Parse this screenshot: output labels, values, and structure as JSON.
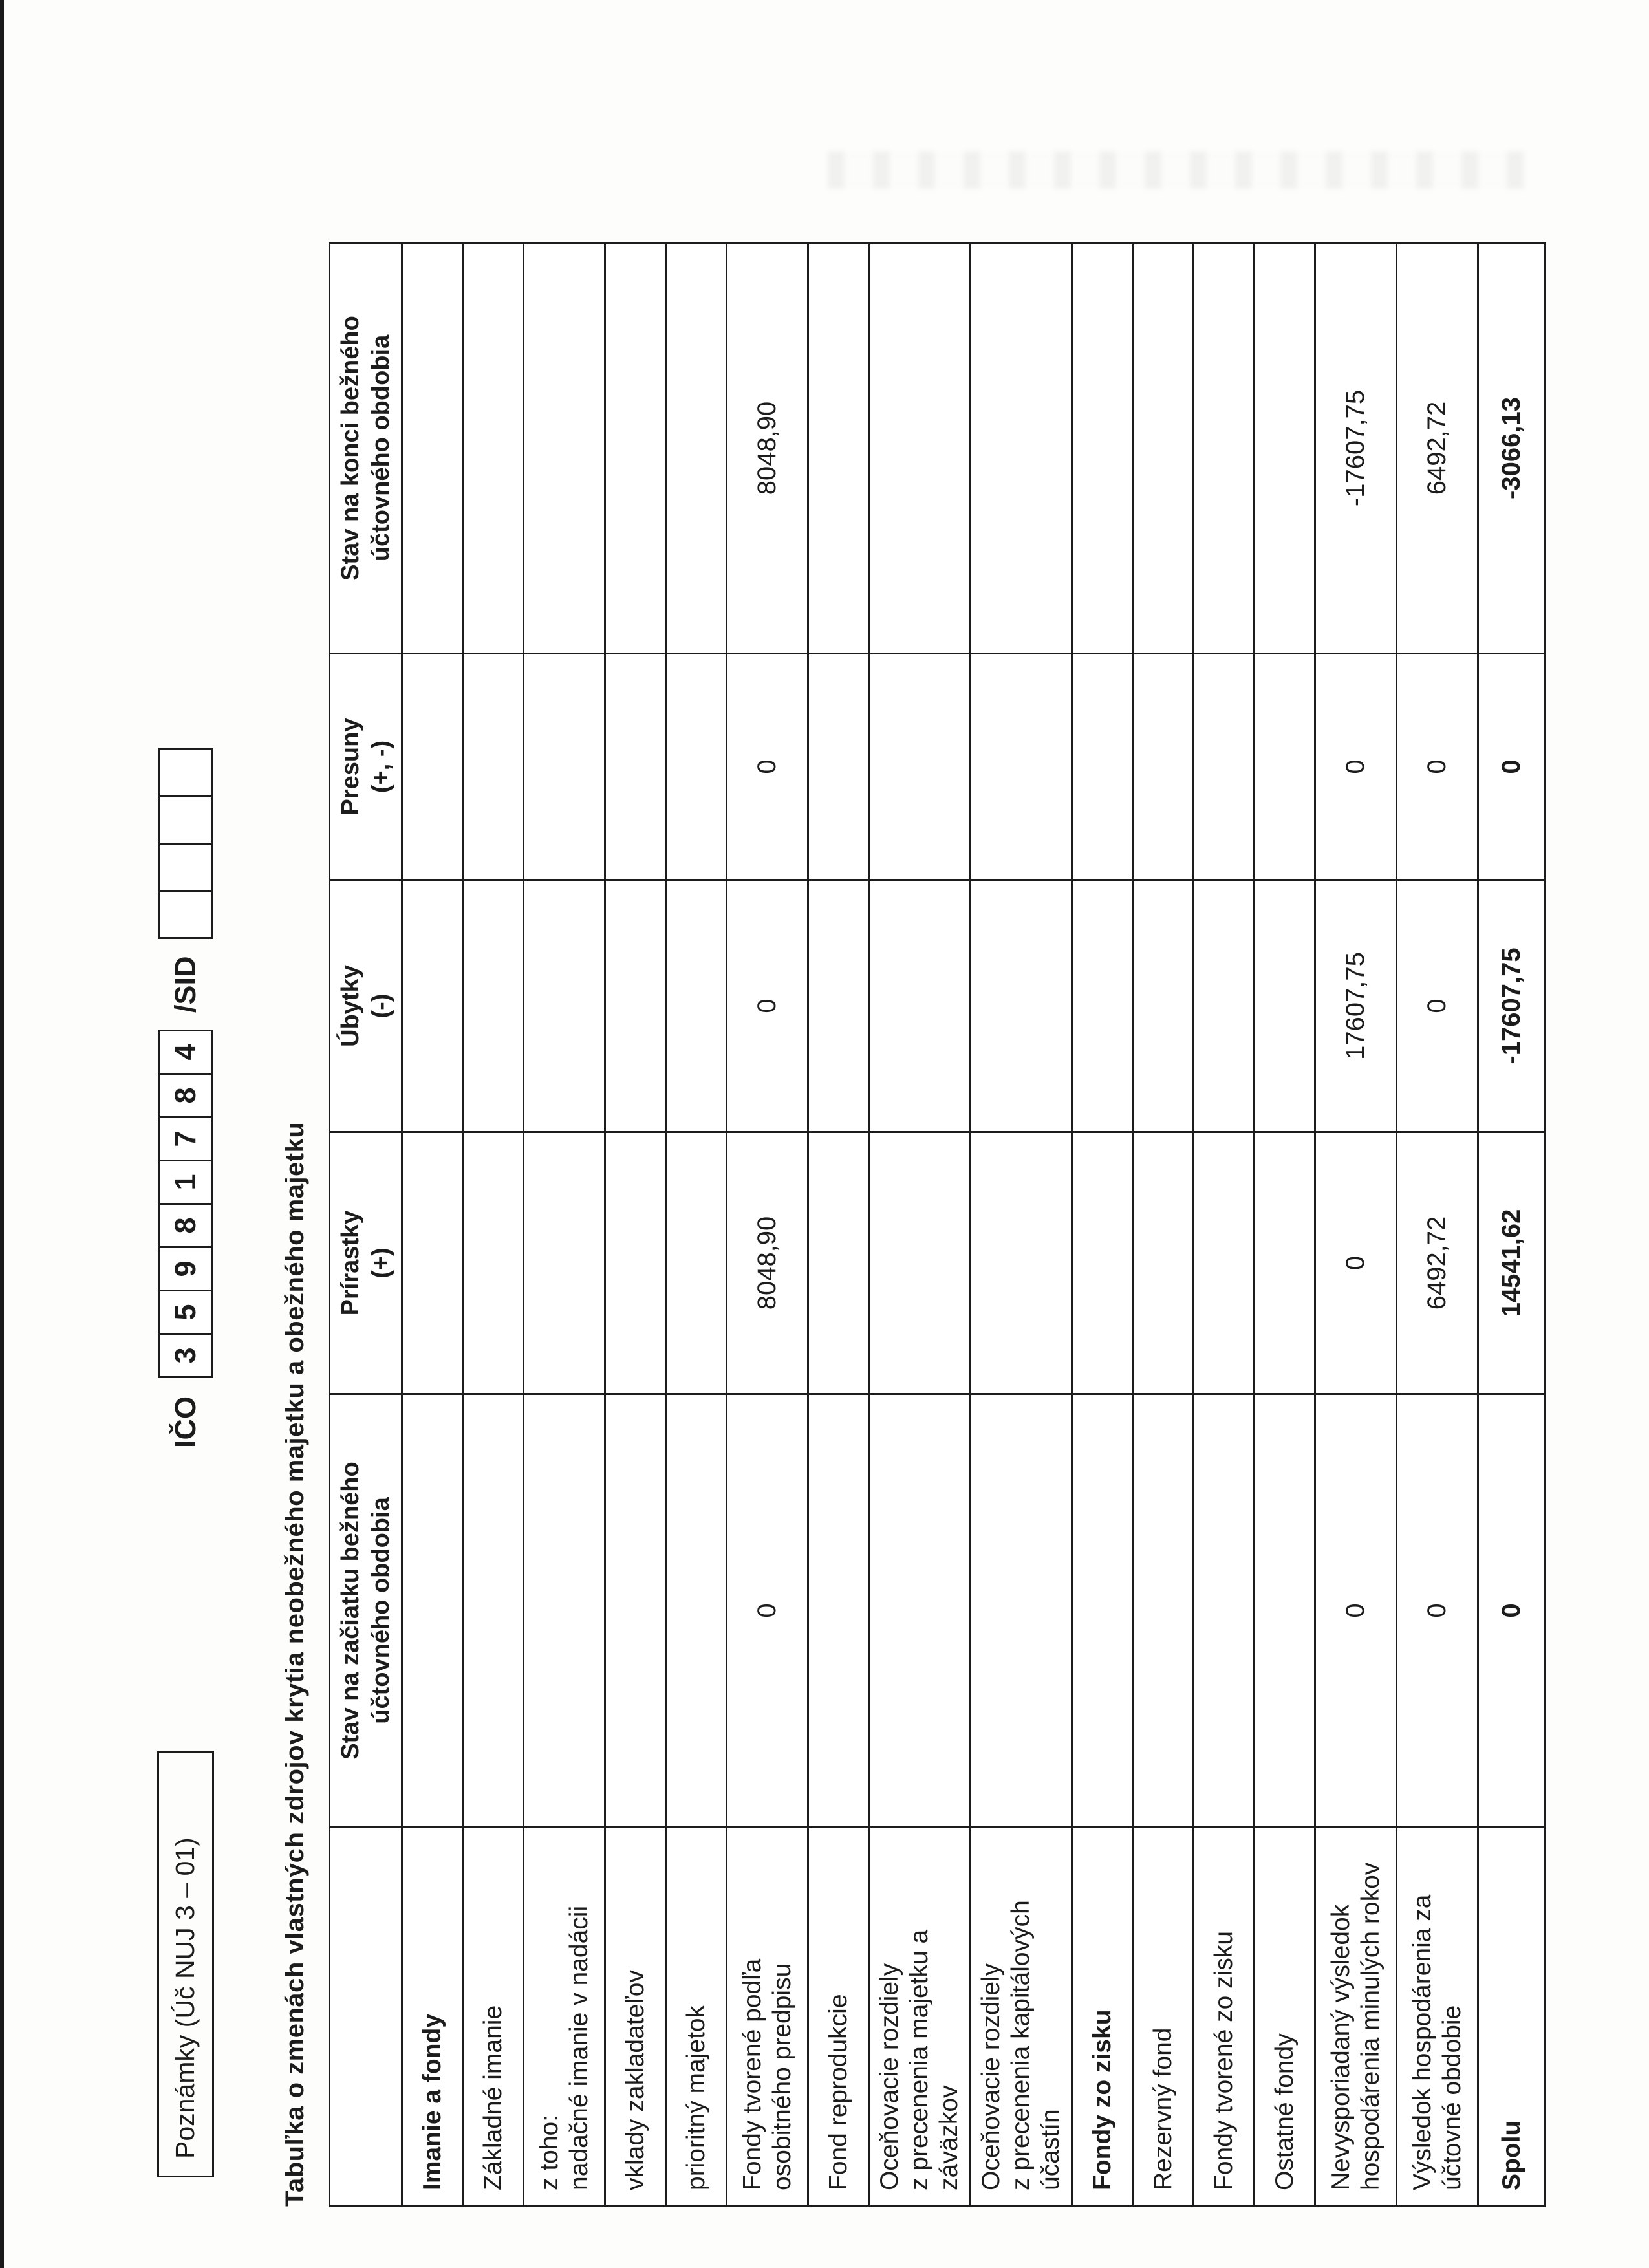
{
  "page": {
    "poznamky_label": "Poznámky (Úč NUJ 3 – 01)",
    "ico": {
      "label": "IČO",
      "digits": [
        "3",
        "5",
        "9",
        "8",
        "1",
        "7",
        "8",
        "4"
      ],
      "sid_label": "/SID",
      "sid_empty_count": 4
    },
    "title": "Tabuľka o zmenách vlastných zdrojov krytia neobežného majetku a obežného majetku"
  },
  "table": {
    "header": [
      {
        "lines": []
      },
      {
        "lines": [
          "Stav na začiatku bežného",
          "účtovného obdobia"
        ]
      },
      {
        "lines": [
          "Prírastky",
          "(+)"
        ]
      },
      {
        "lines": [
          "Úbytky",
          "(-)"
        ]
      },
      {
        "lines": [
          "Presuny",
          "(+, -)"
        ]
      },
      {
        "lines": [
          "Stav na konci bežného",
          "účtovného obdobia"
        ]
      }
    ],
    "rows": [
      {
        "label_lines": [
          "Imanie a fondy"
        ],
        "section": true,
        "values": [
          "",
          "",
          "",
          "",
          ""
        ]
      },
      {
        "label_lines": [
          "Základné imanie"
        ],
        "values": [
          "",
          "",
          "",
          "",
          ""
        ]
      },
      {
        "label_lines": [
          "z toho:",
          "nadačné imanie v nadácii"
        ],
        "values": [
          "",
          "",
          "",
          "",
          ""
        ]
      },
      {
        "label_lines": [
          "vklady zakladateľov"
        ],
        "values": [
          "",
          "",
          "",
          "",
          ""
        ]
      },
      {
        "label_lines": [
          "prioritný majetok"
        ],
        "values": [
          "",
          "",
          "",
          "",
          ""
        ]
      },
      {
        "label_lines": [
          "Fondy tvorené podľa",
          "osobitného predpisu"
        ],
        "values": [
          "0",
          "8048,90",
          "0",
          "0",
          "8048,90"
        ]
      },
      {
        "label_lines": [
          "Fond reprodukcie"
        ],
        "values": [
          "",
          "",
          "",
          "",
          ""
        ]
      },
      {
        "label_lines": [
          "Oceňovacie rozdiely",
          "z precenenia majetku a",
          "záväzkov"
        ],
        "values": [
          "",
          "",
          "",
          "",
          ""
        ]
      },
      {
        "label_lines": [
          "Oceňovacie rozdiely",
          "z precenenia kapitálových",
          "účastín"
        ],
        "values": [
          "",
          "",
          "",
          "",
          ""
        ]
      },
      {
        "label_lines": [
          "Fondy zo zisku"
        ],
        "section": true,
        "values": [
          "",
          "",
          "",
          "",
          ""
        ]
      },
      {
        "label_lines": [
          "Rezervný fond"
        ],
        "values": [
          "",
          "",
          "",
          "",
          ""
        ]
      },
      {
        "label_lines": [
          "Fondy tvorené zo zisku"
        ],
        "values": [
          "",
          "",
          "",
          "",
          ""
        ]
      },
      {
        "label_lines": [
          "Ostatné fondy"
        ],
        "values": [
          "",
          "",
          "",
          "",
          ""
        ]
      },
      {
        "label_lines": [
          "Nevysporiadaný výsledok",
          "hospodárenia minulých rokov"
        ],
        "values": [
          "0",
          "0",
          "17607,75",
          "0",
          "-17607,75"
        ]
      },
      {
        "label_lines": [
          "Výsledok hospodárenia za",
          "účtovné obdobie"
        ],
        "values": [
          "0",
          "6492,72",
          "0",
          "0",
          "6492,72"
        ]
      },
      {
        "label_lines": [
          "Spolu"
        ],
        "total": true,
        "values": [
          "0",
          "14541,62",
          "-17607,75",
          "0",
          "-3066,13"
        ]
      }
    ]
  }
}
